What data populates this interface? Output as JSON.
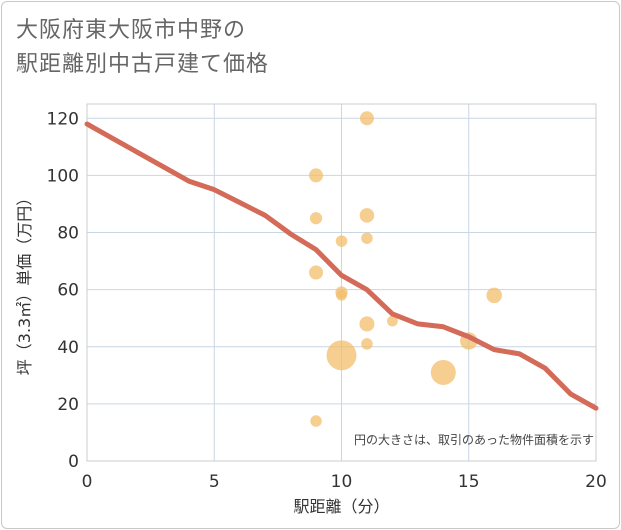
{
  "title_line1": "大阪府東大阪市中野の",
  "title_line2": "駅距離別中古戸建て価格",
  "chart_data": {
    "type": "scatter",
    "xlabel": "駅距離（分）",
    "ylabel": "坪（3.3㎡）単価（万円）",
    "xlim": [
      0,
      20
    ],
    "ylim": [
      0,
      125
    ],
    "x_ticks": [
      0,
      5,
      10,
      15,
      20
    ],
    "y_ticks": [
      0,
      20,
      40,
      60,
      80,
      100,
      120
    ],
    "x_tick_labels": [
      "0",
      "5",
      "10",
      "15",
      "20"
    ],
    "y_tick_labels": [
      "0",
      "20",
      "40",
      "60",
      "80",
      "100",
      "120"
    ],
    "grid": true,
    "note": "円の大きさは、取引のあった物件面積を示す",
    "points": [
      {
        "x": 9,
        "y": 100,
        "size": 1
      },
      {
        "x": 9,
        "y": 85,
        "size": 0.7
      },
      {
        "x": 9,
        "y": 66,
        "size": 1
      },
      {
        "x": 9,
        "y": 14,
        "size": 0.6
      },
      {
        "x": 10,
        "y": 77,
        "size": 0.6
      },
      {
        "x": 10,
        "y": 59,
        "size": 0.7
      },
      {
        "x": 10,
        "y": 58,
        "size": 0.5
      },
      {
        "x": 10,
        "y": 37,
        "size": 6
      },
      {
        "x": 11,
        "y": 120,
        "size": 1
      },
      {
        "x": 11,
        "y": 86,
        "size": 1.1
      },
      {
        "x": 11,
        "y": 78,
        "size": 0.6
      },
      {
        "x": 11,
        "y": 48,
        "size": 1.2
      },
      {
        "x": 11,
        "y": 41,
        "size": 0.6
      },
      {
        "x": 12,
        "y": 49,
        "size": 0.5
      },
      {
        "x": 14,
        "y": 31,
        "size": 4
      },
      {
        "x": 15,
        "y": 42,
        "size": 1.7
      },
      {
        "x": 16,
        "y": 58,
        "size": 1.3
      }
    ],
    "trend_line": {
      "x": [
        0,
        1,
        2,
        3,
        4,
        5,
        6,
        7,
        8,
        9,
        10,
        11,
        12,
        13,
        14,
        15,
        16,
        17,
        18,
        19,
        20
      ],
      "y": [
        118,
        113,
        108,
        103,
        98,
        95,
        90.5,
        86,
        79.5,
        74,
        65,
        60,
        51.5,
        48,
        47,
        43.5,
        39,
        37.5,
        32.5,
        23.5,
        18.5
      ]
    },
    "colors": {
      "points": "#f2bd6b",
      "trend": "#d46b58",
      "grid": "#c9d6e3",
      "border": "#cccccc"
    }
  }
}
